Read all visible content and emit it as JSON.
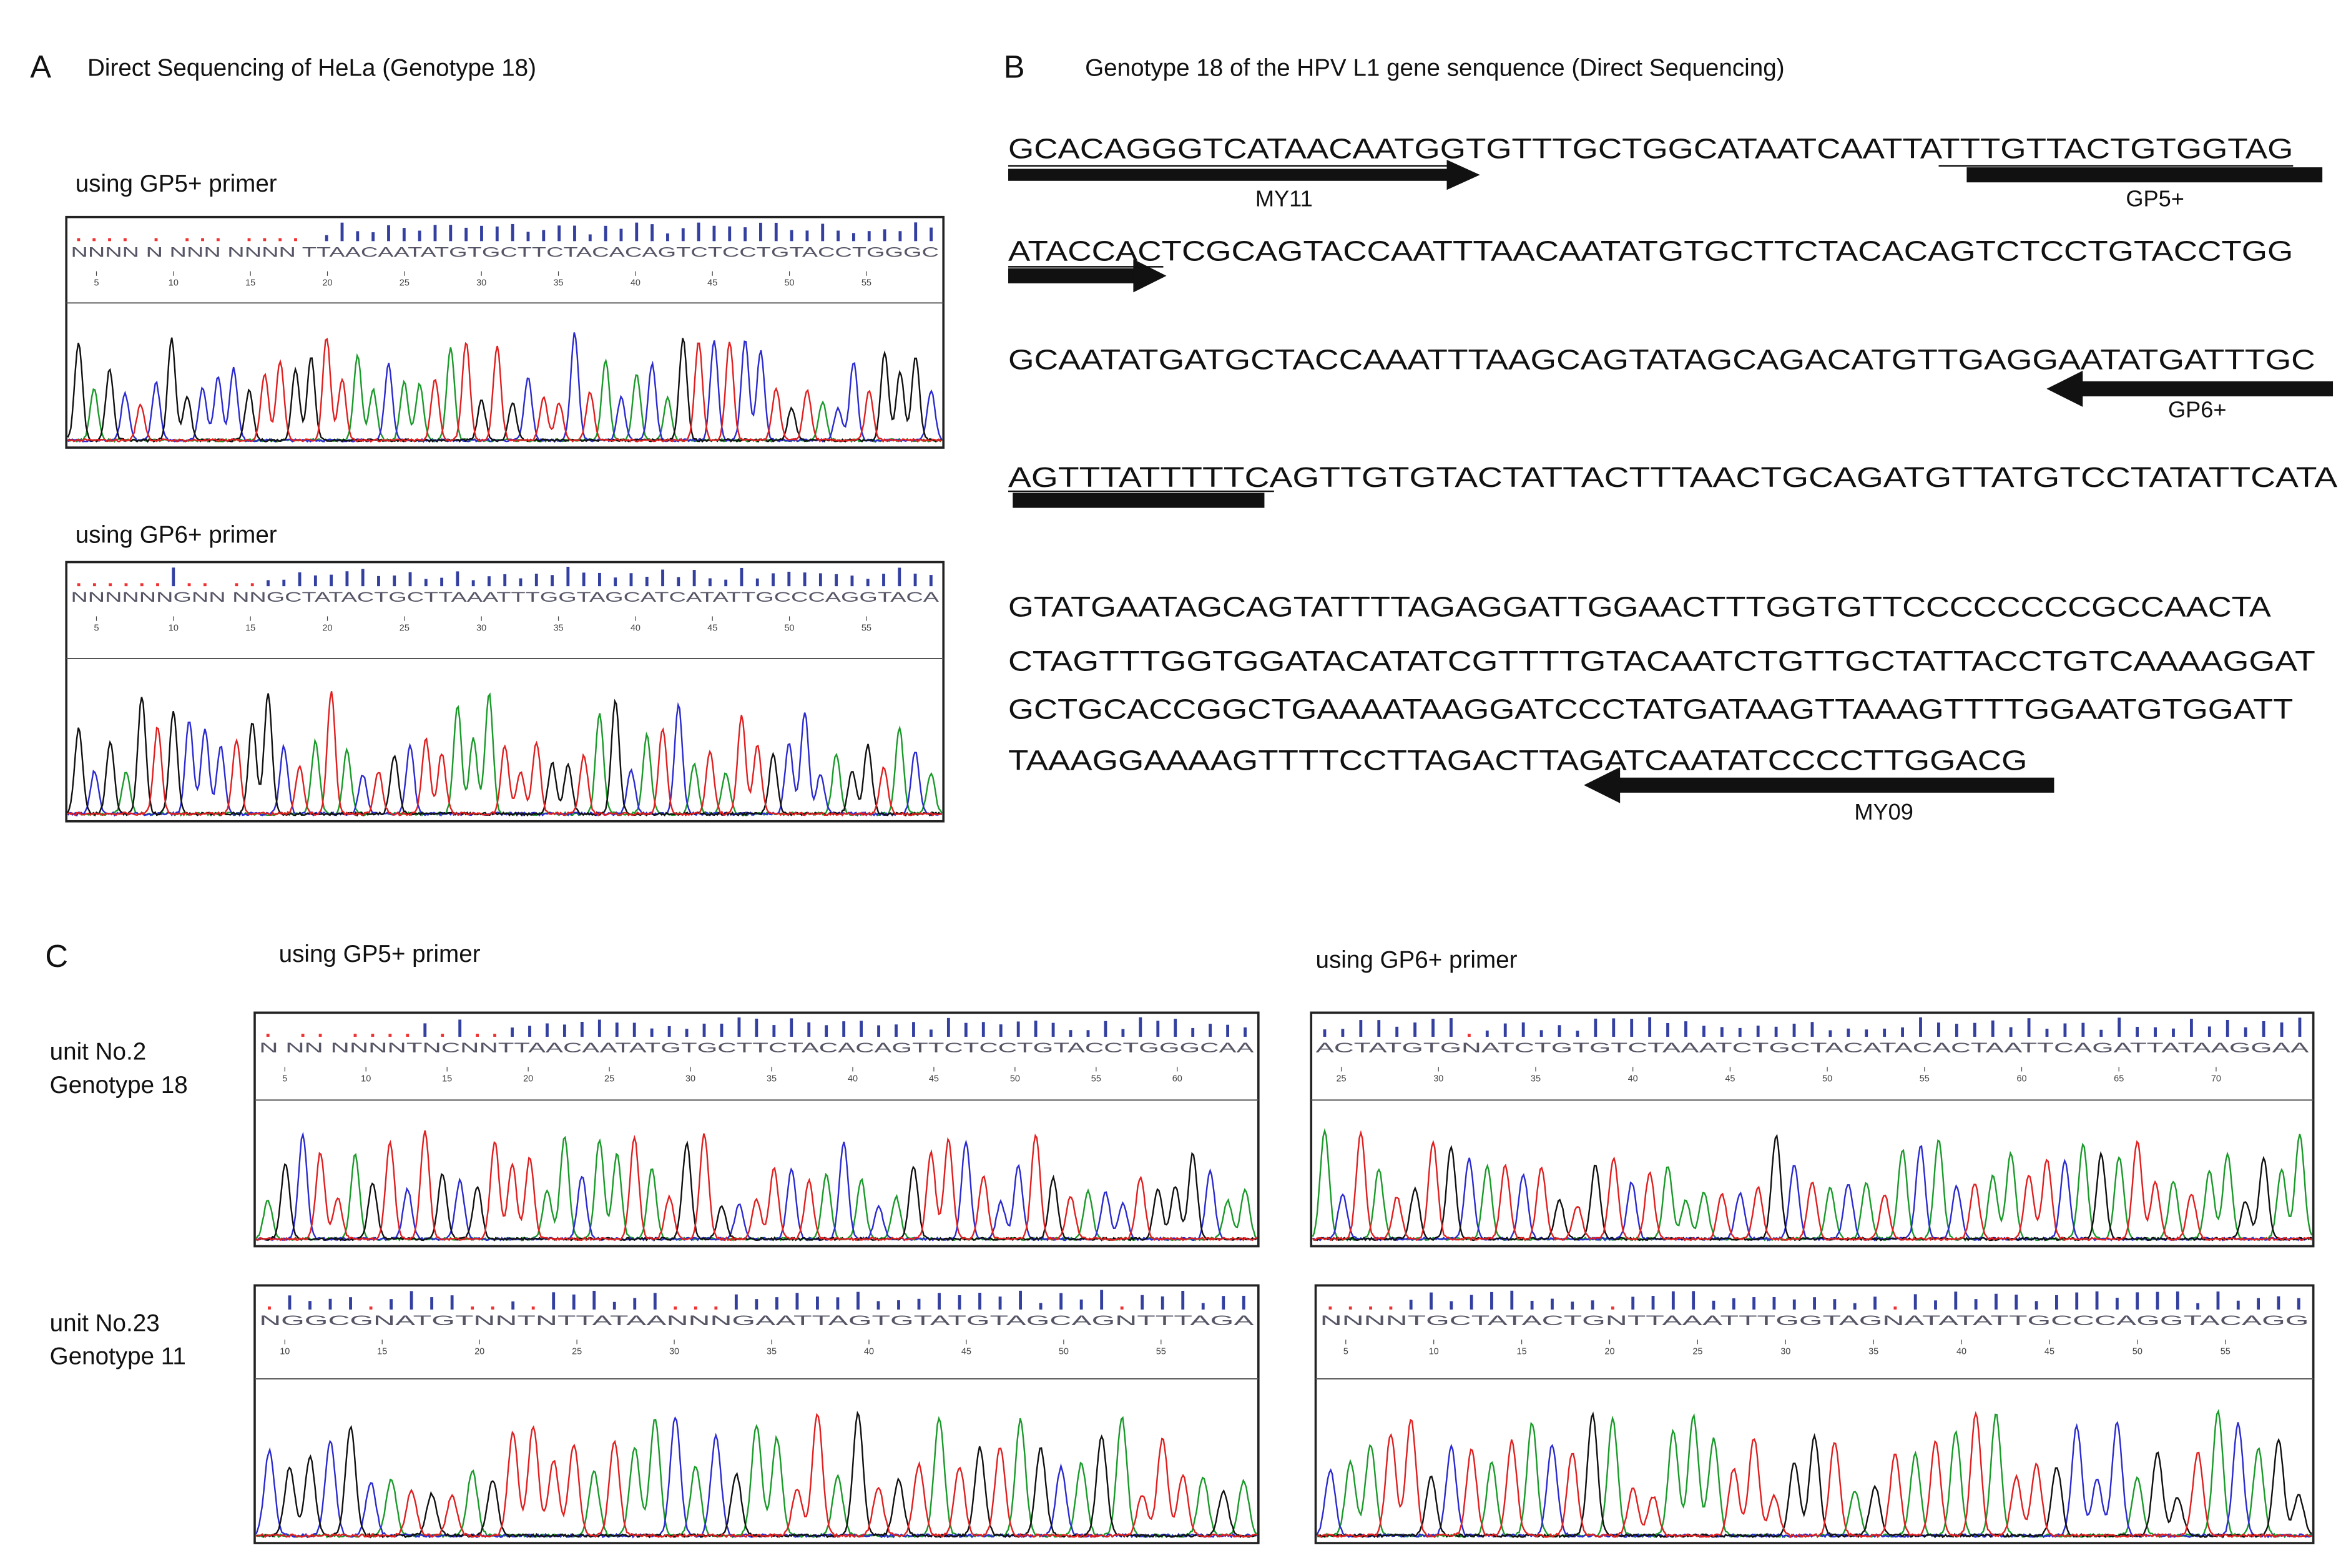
{
  "panel_a": {
    "label": "A",
    "title": "Direct Sequencing of HeLa (Genotype 18)",
    "traces": [
      {
        "primer": "using GP5+ primer",
        "bases": "NNNN N NNN NNNN TTAACAATATGTGCTTCTACACAGTCTCCTGTACCTGGGC",
        "ticks": [
          5,
          10,
          15,
          20,
          25,
          30,
          35,
          40,
          45,
          50,
          55
        ]
      },
      {
        "primer": "using GP6+ primer",
        "bases": "NNNNNNGNN NNGCTATACTGCTTAAATTTGGTAGCATCATATTGCCCAGGTACA",
        "ticks": [
          5,
          10,
          15,
          20,
          25,
          30,
          35,
          40,
          45,
          50,
          55
        ]
      }
    ]
  },
  "panel_b": {
    "label": "B",
    "title": "Genotype 18 of the HPV L1 gene senquence (Direct Sequencing)",
    "lines": [
      "GCACAGGGTCATAACAATGGTGTTTGCTGGCATAATCAATTATTTGTTACTGTGGTAG",
      "ATACCACTCGCAGTACCAATTTAACAATATGTGCTTCTACACAGTCTCCTGTACCTGG",
      "GCAATATGATGCTACCAAATTTAAGCAGTATAGCAGACATGTTGAGGAATATGATTTGC",
      "AGTTTATTTTTCAGTTGTGTACTATTACTTTAACTGCAGATGTTATGTCCTATATTCATA",
      "GTATGAATAGCAGTATTTTAGAGGATTGGAACTTTGGTGTTCCCCCCCCGCCAACTA",
      "CTAGTTTGGTGGATACATATCGTTTTGTACAATCTGTTGCTATTACCTGTCAAAAGGAT",
      "GCTGCACCGGCTGAAAATAAGGATCCCTATGATAAGTTAAAGTTTTGGAATGTGGATT",
      "TAAAGGAAAAGTTTTCCTTAGACTTAGATCAATATCCCCTTGGACG"
    ],
    "primers": [
      "MY11",
      "GP5+",
      "GP6+",
      "MY09"
    ]
  },
  "panel_c": {
    "label": "C",
    "columns": [
      "using GP5+ primer",
      "using GP6+ primer"
    ],
    "rows": [
      {
        "unit": "unit No.2",
        "genotype": "Genotype 18",
        "traces": [
          {
            "bases": "N NN NNNNTNCNNTTAACAATATGTGCTTCTACACAGTTCTCCTGTACCTGGGCAA",
            "ticks": [
              5,
              10,
              15,
              20,
              25,
              30,
              35,
              40,
              45,
              50,
              55,
              60
            ]
          },
          {
            "bases": "ACTATGTGNATCTGTGTCTAAATCTGCTACATACACTAATTCAGATTATAAGGAA",
            "ticks": [
              25,
              30,
              35,
              40,
              45,
              50,
              55,
              60,
              65,
              70
            ]
          }
        ]
      },
      {
        "unit": "unit No.23",
        "genotype": "Genotype 11",
        "traces": [
          {
            "bases": "NGGCGNATGTNNTNTTATAANNNGAATTAGTGTATGTAGCAGNTTTAGA",
            "ticks": [
              10,
              15,
              20,
              25,
              30,
              35,
              40,
              45,
              50,
              55
            ]
          },
          {
            "bases": "NNNNTGCTATACTGNTTAAATTTGGTAGNATATATTGCCCAGGTACAGG",
            "ticks": [
              5,
              10,
              15,
              20,
              25,
              30,
              35,
              40,
              45,
              50,
              55
            ]
          }
        ]
      }
    ]
  }
}
